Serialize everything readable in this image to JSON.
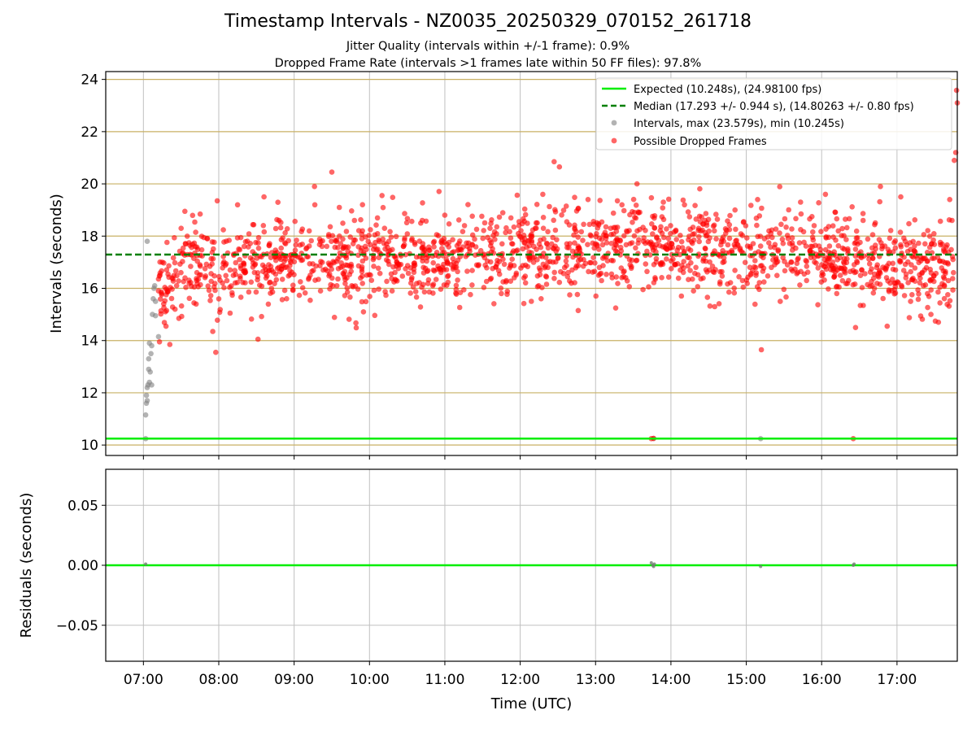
{
  "title": "Timestamp Intervals - NZ0035_20250329_070152_261718",
  "subtitle_1": "Jitter Quality (intervals within +/-1 frame): 0.9%",
  "subtitle_2": "Dropped Frame Rate (intervals >1 frames late within 50 FF files): 97.8%",
  "colors": {
    "expected_line": "#00ee00",
    "median_line": "#007f00",
    "intervals_points": "#808080",
    "dropped_points": "#ff0000",
    "interval_gridlines": "#c8b064",
    "gridlines": "#c0c0c0",
    "residual_points": "#708070"
  },
  "chart_data": [
    {
      "type": "scatter",
      "panel": "top",
      "xlabel": "",
      "ylabel": "Intervals (seconds)",
      "x_unit": "hours UTC",
      "xlim": [
        6.5,
        17.8
      ],
      "ylim": [
        9.6,
        24.3
      ],
      "yticks": [
        "10",
        "12",
        "14",
        "16",
        "18",
        "20",
        "22",
        "24"
      ],
      "ytick_values": [
        10,
        12,
        14,
        16,
        18,
        20,
        22,
        24
      ],
      "grid": true,
      "legend_position": "top-right",
      "lines": [
        {
          "name": "Expected (10.248s), (24.98100 fps)",
          "y": 10.248,
          "style": "solid"
        },
        {
          "name": "Median (17.293 +/- 0.944 s), (14.80263 +/- 0.80 fps)",
          "y": 17.293,
          "style": "dashed"
        }
      ],
      "series": [
        {
          "name": "Intervals, max (23.579s), min (10.245s)",
          "points": [
            [
              7.03,
              10.245
            ],
            [
              7.03,
              11.15
            ],
            [
              7.04,
              11.6
            ],
            [
              7.04,
              11.9
            ],
            [
              7.05,
              12.2
            ],
            [
              7.05,
              11.7
            ],
            [
              7.06,
              12.3
            ],
            [
              7.07,
              12.9
            ],
            [
              7.07,
              13.3
            ],
            [
              7.08,
              12.4
            ],
            [
              7.08,
              13.9
            ],
            [
              7.09,
              12.8
            ],
            [
              7.1,
              13.5
            ],
            [
              7.11,
              13.8
            ],
            [
              7.11,
              12.3
            ],
            [
              7.12,
              15.0
            ],
            [
              7.13,
              15.6
            ],
            [
              7.14,
              16.0
            ],
            [
              7.15,
              16.1
            ],
            [
              7.16,
              15.5
            ],
            [
              7.16,
              14.95
            ],
            [
              7.05,
              17.8
            ],
            [
              7.2,
              14.15
            ],
            [
              15.19,
              10.245
            ],
            [
              13.77,
              10.25
            ]
          ]
        },
        {
          "name": "Possible Dropped Frames",
          "points": [
            [
              7.2,
              15.9
            ],
            [
              7.22,
              16.5
            ],
            [
              7.25,
              17.0
            ],
            [
              7.3,
              14.55
            ],
            [
              7.35,
              13.85
            ],
            [
              7.38,
              16.4
            ],
            [
              7.42,
              15.2
            ],
            [
              7.47,
              14.85
            ],
            [
              7.5,
              18.3
            ],
            [
              7.55,
              18.95
            ],
            [
              7.62,
              17.3
            ],
            [
              7.7,
              15.4
            ],
            [
              7.75,
              16.9
            ],
            [
              7.85,
              17.9
            ],
            [
              7.92,
              14.35
            ],
            [
              7.96,
              13.55
            ],
            [
              7.98,
              19.35
            ],
            [
              8.05,
              16.2
            ],
            [
              8.15,
              15.05
            ],
            [
              8.25,
              19.2
            ],
            [
              8.35,
              16.6
            ],
            [
              8.45,
              17.4
            ],
            [
              8.52,
              14.05
            ],
            [
              8.6,
              19.5
            ],
            [
              8.7,
              16.0
            ],
            [
              8.8,
              18.6
            ],
            [
              8.9,
              15.6
            ],
            [
              9.05,
              17.2
            ],
            [
              9.2,
              18.2
            ],
            [
              9.27,
              19.9
            ],
            [
              9.35,
              15.9
            ],
            [
              9.5,
              20.45
            ],
            [
              9.6,
              19.1
            ],
            [
              9.7,
              16.4
            ],
            [
              9.8,
              18.6
            ],
            [
              9.92,
              15.1
            ],
            [
              10.05,
              17.1
            ],
            [
              10.2,
              18.3
            ],
            [
              10.3,
              15.9
            ],
            [
              10.45,
              17.6
            ],
            [
              10.55,
              16.2
            ],
            [
              10.7,
              18.6
            ],
            [
              10.85,
              16.7
            ],
            [
              11.0,
              18.8
            ],
            [
              11.15,
              15.95
            ],
            [
              11.3,
              17.6
            ],
            [
              11.45,
              16.9
            ],
            [
              11.6,
              18.3
            ],
            [
              11.75,
              15.8
            ],
            [
              11.9,
              17.7
            ],
            [
              12.05,
              16.4
            ],
            [
              12.2,
              18.3
            ],
            [
              12.3,
              19.6
            ],
            [
              12.45,
              20.85
            ],
            [
              12.52,
              20.65
            ],
            [
              12.7,
              17.2
            ],
            [
              12.77,
              15.15
            ],
            [
              12.9,
              19.4
            ],
            [
              13.05,
              16.8
            ],
            [
              13.2,
              18.3
            ],
            [
              13.35,
              19.2
            ],
            [
              13.45,
              17.1
            ],
            [
              13.55,
              20.0
            ],
            [
              13.63,
              15.95
            ],
            [
              13.74,
              10.245
            ],
            [
              13.77,
              10.25
            ],
            [
              13.8,
              17.4
            ],
            [
              13.9,
              19.3
            ],
            [
              14.05,
              16.9
            ],
            [
              14.18,
              19.2
            ],
            [
              14.3,
              15.9
            ],
            [
              14.45,
              18.6
            ],
            [
              14.58,
              15.3
            ],
            [
              14.7,
              17.8
            ],
            [
              14.85,
              19.0
            ],
            [
              14.95,
              16.3
            ],
            [
              15.05,
              17.6
            ],
            [
              15.15,
              19.4
            ],
            [
              15.2,
              13.65
            ],
            [
              15.3,
              18.2
            ],
            [
              15.45,
              15.5
            ],
            [
              15.6,
              17.0
            ],
            [
              15.72,
              19.3
            ],
            [
              15.8,
              16.3
            ],
            [
              15.9,
              18.4
            ],
            [
              16.05,
              19.6
            ],
            [
              16.2,
              15.8
            ],
            [
              16.3,
              17.5
            ],
            [
              16.42,
              10.245
            ],
            [
              16.45,
              14.5
            ],
            [
              16.55,
              18.6
            ],
            [
              16.7,
              16.0
            ],
            [
              16.78,
              19.9
            ],
            [
              16.87,
              14.55
            ],
            [
              16.95,
              17.4
            ],
            [
              17.05,
              19.5
            ],
            [
              17.18,
              15.5
            ],
            [
              17.35,
              16.1
            ],
            [
              17.45,
              15.0
            ],
            [
              17.55,
              14.7
            ],
            [
              17.62,
              17.5
            ],
            [
              17.7,
              19.4
            ],
            [
              17.73,
              18.6
            ],
            [
              17.76,
              20.9
            ],
            [
              17.78,
              21.2
            ],
            [
              17.79,
              23.58
            ],
            [
              17.8,
              23.1
            ]
          ]
        }
      ]
    },
    {
      "type": "scatter",
      "panel": "bottom",
      "xlabel": "Time (UTC)",
      "ylabel": "Residuals (seconds)",
      "x_unit": "hours UTC",
      "xlim": [
        6.5,
        17.8
      ],
      "ylim": [
        -0.08,
        0.08
      ],
      "xticks": [
        "07:00",
        "08:00",
        "09:00",
        "10:00",
        "11:00",
        "12:00",
        "13:00",
        "14:00",
        "15:00",
        "16:00",
        "17:00"
      ],
      "xtick_values": [
        7,
        8,
        9,
        10,
        11,
        12,
        13,
        14,
        15,
        16,
        17
      ],
      "yticks": [
        "−0.05",
        "0.00",
        "0.05"
      ],
      "ytick_values": [
        -0.05,
        0.0,
        0.05
      ],
      "grid": true,
      "zero_line": 0.0,
      "points": [
        [
          7.03,
          0.001
        ],
        [
          13.74,
          0.002
        ],
        [
          13.76,
          0.0
        ],
        [
          13.77,
          -0.001
        ],
        [
          13.78,
          0.001
        ],
        [
          15.19,
          -0.001
        ],
        [
          16.42,
          0.0
        ],
        [
          16.43,
          0.001
        ]
      ]
    }
  ]
}
